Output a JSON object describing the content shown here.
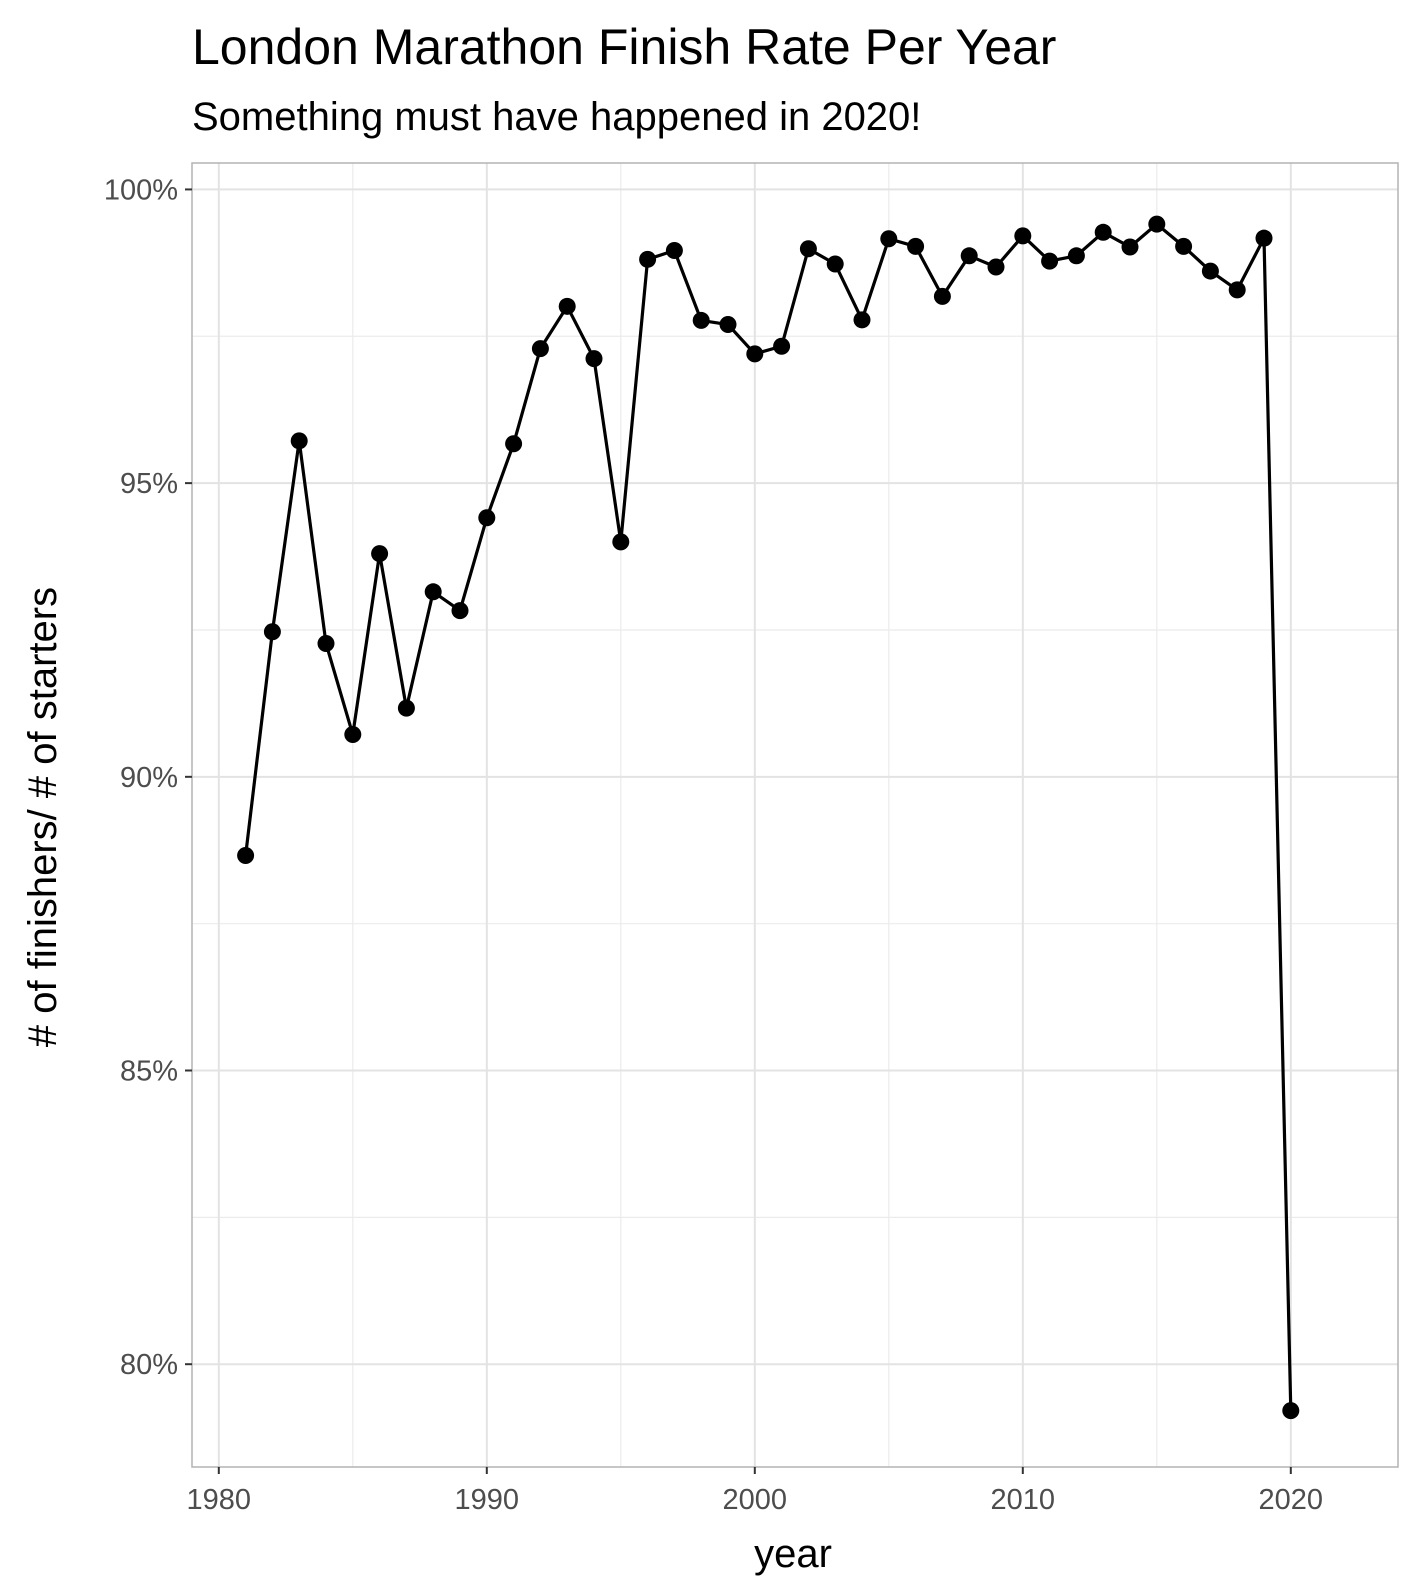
{
  "chart_data": {
    "type": "line",
    "title": "London Marathon Finish Rate Per Year",
    "subtitle": "Something must have happened in 2020!",
    "xlabel": "year",
    "ylabel": "# of finishers/ # of starters",
    "xlim": [
      1979,
      2024
    ],
    "ylim": [
      78.25,
      100.45
    ],
    "x_ticks": [
      1980,
      1990,
      2000,
      2010,
      2020
    ],
    "y_ticks": [
      80,
      85,
      90,
      95,
      100
    ],
    "y_tick_labels": [
      "80%",
      "85%",
      "90%",
      "95%",
      "100%"
    ],
    "grid": true,
    "series": [
      {
        "x": [
          1981,
          1982,
          1983,
          1984,
          1985,
          1986,
          1987,
          1988,
          1989,
          1990,
          1991,
          1992,
          1993,
          1994,
          1995,
          1996,
          1997,
          1998,
          1999,
          2000,
          2001,
          2002,
          2003,
          2004,
          2005,
          2006,
          2007,
          2008,
          2009,
          2010,
          2011,
          2012,
          2013,
          2014,
          2015,
          2016,
          2017,
          2018,
          2019,
          2020
        ],
        "values": [
          88.66,
          92.47,
          95.72,
          92.27,
          90.72,
          93.8,
          91.17,
          93.15,
          92.83,
          94.41,
          95.67,
          97.29,
          98.01,
          97.12,
          94.0,
          98.81,
          98.96,
          97.77,
          97.7,
          97.2,
          97.33,
          98.99,
          98.73,
          97.78,
          99.16,
          99.03,
          98.18,
          98.87,
          98.68,
          99.21,
          98.78,
          98.87,
          99.27,
          99.02,
          99.41,
          99.03,
          98.61,
          98.29,
          99.17,
          79.21
        ]
      }
    ],
    "colors": {
      "line": "#000000",
      "point": "#000000",
      "grid": "#ebebeb",
      "border": "#b3b3b3"
    }
  }
}
